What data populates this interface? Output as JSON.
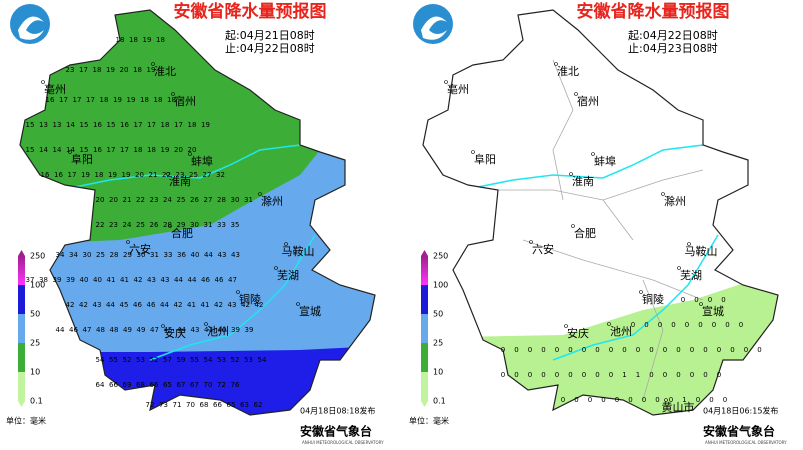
{
  "panels": [
    {
      "title": "安徽省降水量预报图",
      "start": "起:04月21日08时",
      "end": "止:04月22日08时",
      "published": "04月18日08:18发布",
      "agency": "安徽省气象台",
      "agency_en": "ANHUI METEOROLOGICAL OBSERVATORY",
      "unit": "单位：毫米",
      "legend": {
        "ticks": [
          250,
          100,
          50,
          25,
          10,
          0.1
        ]
      },
      "cities": [
        "淮北",
        "亳州",
        "宿州",
        "阜阳",
        "蚌埠",
        "淮南",
        "滁州",
        "六安",
        "合肥",
        "马鞍山",
        "芜湖",
        "铜陵",
        "宣城",
        "安庆",
        "池州"
      ],
      "grid": [
        [
          18,
          18,
          19,
          18
        ],
        [
          23,
          17,
          18,
          19,
          20,
          18,
          19
        ],
        [
          16,
          17,
          17,
          17,
          18,
          19,
          19,
          18,
          18,
          18
        ],
        [
          15,
          13,
          13,
          14,
          15,
          16,
          15,
          16,
          17,
          17,
          18,
          17,
          18,
          19
        ],
        [
          15,
          14,
          14,
          14,
          15,
          16,
          17,
          17,
          18,
          18,
          19,
          20,
          20
        ],
        [
          16,
          16,
          17,
          19,
          18,
          19,
          19,
          20,
          21,
          22,
          23,
          25,
          27,
          32
        ],
        [
          20,
          20,
          21,
          22,
          23,
          24,
          25,
          26,
          27,
          28,
          30,
          31
        ],
        [
          22,
          23,
          24,
          25,
          26,
          28,
          29,
          30,
          31,
          33,
          35
        ],
        [
          34,
          34,
          30,
          25,
          28,
          29,
          30,
          31,
          33,
          36,
          40,
          44,
          43,
          43
        ],
        [
          37,
          38,
          39,
          39,
          40,
          40,
          41,
          41,
          42,
          43,
          43,
          44,
          44,
          46,
          46,
          47
        ],
        [
          42,
          42,
          43,
          44,
          45,
          46,
          46,
          44,
          42,
          41,
          41,
          42,
          43,
          42,
          42
        ],
        [
          44,
          46,
          47,
          48,
          48,
          49,
          49,
          47,
          45,
          44,
          43,
          41,
          40,
          39,
          39
        ],
        [
          54,
          55,
          52,
          53,
          52,
          57,
          59,
          55,
          54,
          53,
          52,
          53,
          54
        ],
        [
          64,
          66,
          69,
          68,
          66,
          65,
          67,
          67,
          70,
          72,
          76
        ],
        [
          72,
          73,
          71,
          70,
          68,
          66,
          65,
          63,
          62
        ]
      ]
    },
    {
      "title": "安徽省降水量预报图",
      "start": "起:04月22日08时",
      "end": "止:04月23日08时",
      "published": "04月18日06:15发布",
      "agency": "安徽省气象台",
      "agency_en": "ANHUI METEOROLOGICAL OBSERVATORY",
      "unit": "单位：毫米",
      "legend": {
        "ticks": [
          250,
          100,
          50,
          25,
          10,
          0.1
        ]
      },
      "cities": [
        "淮北",
        "亳州",
        "宿州",
        "阜阳",
        "蚌埠",
        "淮南",
        "滁州",
        "六安",
        "合肥",
        "马鞍山",
        "芜湖",
        "铜陵",
        "宣城",
        "安庆",
        "池州",
        "黄山市"
      ],
      "grid": [
        [
          0,
          0,
          0,
          0
        ],
        [
          0,
          0,
          0,
          0,
          0,
          0,
          0,
          0,
          0
        ],
        [
          0,
          0,
          0,
          0,
          0,
          0,
          0,
          0,
          0,
          0,
          0,
          0,
          0,
          0,
          0,
          0,
          0,
          0,
          0,
          0
        ],
        [
          0,
          0,
          0,
          0,
          0,
          0,
          0,
          0,
          0,
          1,
          1,
          0,
          0,
          0,
          0,
          0,
          0
        ],
        [
          0,
          0,
          0,
          0,
          0,
          0,
          0,
          0,
          0,
          1,
          0,
          0,
          0
        ]
      ]
    }
  ]
}
